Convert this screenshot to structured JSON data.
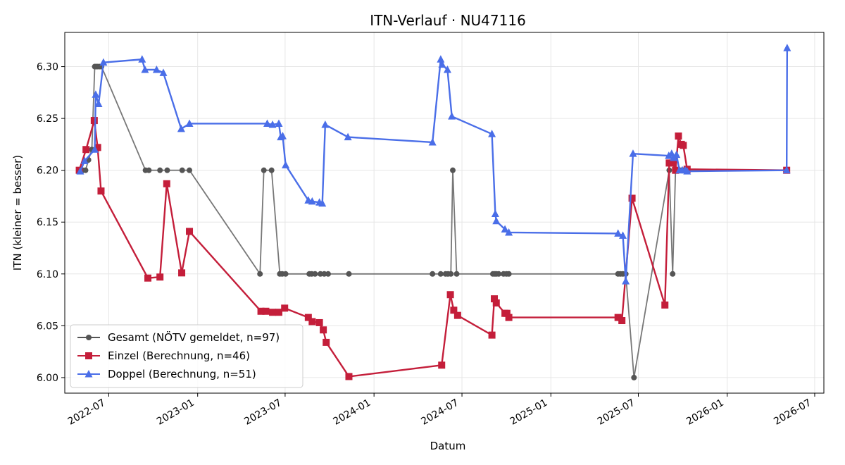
{
  "chart_data": {
    "type": "line",
    "title": "ITN-Verlauf · NU47116",
    "xlabel": "Datum",
    "ylabel": "ITN  (kleiner = besser)",
    "xlim": [
      "2022-04-01",
      "2026-07-20"
    ],
    "ylim": [
      5.985,
      6.333
    ],
    "x_ticks": [
      "2022-07",
      "2023-01",
      "2023-07",
      "2024-01",
      "2024-07",
      "2025-01",
      "2025-07",
      "2026-01",
      "2026-07"
    ],
    "y_ticks": [
      "6.00",
      "6.05",
      "6.10",
      "6.15",
      "6.20",
      "6.25",
      "6.30"
    ],
    "grid": true,
    "legend_position": "lower-left",
    "series": [
      {
        "name": "Gesamt (NÖTV gemeldet, n=97)",
        "color": "#555555",
        "marker": "circle",
        "points": [
          [
            "2022-05-02",
            6.2
          ],
          [
            "2022-05-08",
            6.2
          ],
          [
            "2022-05-14",
            6.2
          ],
          [
            "2022-05-20",
            6.21
          ],
          [
            "2022-05-27",
            6.22
          ],
          [
            "2022-06-02",
            6.3
          ],
          [
            "2022-06-05",
            6.3
          ],
          [
            "2022-06-08",
            6.3
          ],
          [
            "2022-06-12",
            6.3
          ],
          [
            "2022-06-16",
            6.3
          ],
          [
            "2022-09-15",
            6.2
          ],
          [
            "2022-09-22",
            6.2
          ],
          [
            "2022-10-15",
            6.2
          ],
          [
            "2022-10-30",
            6.2
          ],
          [
            "2022-11-30",
            6.2
          ],
          [
            "2022-12-15",
            6.2
          ],
          [
            "2023-05-10",
            6.1
          ],
          [
            "2023-05-18",
            6.2
          ],
          [
            "2023-06-03",
            6.2
          ],
          [
            "2023-06-20",
            6.1
          ],
          [
            "2023-06-25",
            6.1
          ],
          [
            "2023-07-02",
            6.1
          ],
          [
            "2023-08-20",
            6.1
          ],
          [
            "2023-08-25",
            6.1
          ],
          [
            "2023-09-01",
            6.1
          ],
          [
            "2023-09-12",
            6.1
          ],
          [
            "2023-09-20",
            6.1
          ],
          [
            "2023-09-28",
            6.1
          ],
          [
            "2023-11-10",
            6.1
          ],
          [
            "2024-05-01",
            6.1
          ],
          [
            "2024-05-18",
            6.1
          ],
          [
            "2024-05-28",
            6.1
          ],
          [
            "2024-06-02",
            6.1
          ],
          [
            "2024-06-08",
            6.1
          ],
          [
            "2024-06-12",
            6.2
          ],
          [
            "2024-06-20",
            6.1
          ],
          [
            "2024-09-03",
            6.1
          ],
          [
            "2024-09-07",
            6.1
          ],
          [
            "2024-09-10",
            6.1
          ],
          [
            "2024-09-15",
            6.1
          ],
          [
            "2024-09-25",
            6.1
          ],
          [
            "2024-10-01",
            6.1
          ],
          [
            "2024-10-06",
            6.1
          ],
          [
            "2025-05-20",
            6.1
          ],
          [
            "2025-05-25",
            6.1
          ],
          [
            "2025-05-30",
            6.1
          ],
          [
            "2025-06-05",
            6.1
          ],
          [
            "2025-06-22",
            6.0
          ],
          [
            "2025-09-03",
            6.2
          ],
          [
            "2025-09-10",
            6.1
          ],
          [
            "2025-09-16",
            6.2
          ],
          [
            "2025-09-22",
            6.2
          ],
          [
            "2025-09-28",
            6.2
          ],
          [
            "2025-10-02",
            6.2
          ],
          [
            "2025-10-06",
            6.2
          ],
          [
            "2025-10-10",
            6.2
          ],
          [
            "2026-05-04",
            6.2
          ]
        ]
      },
      {
        "name": "Einzel (Berechnung, n=46)",
        "color": "#c41e3a",
        "marker": "square",
        "points": [
          [
            "2022-05-01",
            6.2
          ],
          [
            "2022-05-15",
            6.22
          ],
          [
            "2022-06-01",
            6.248
          ],
          [
            "2022-06-08",
            6.222
          ],
          [
            "2022-06-15",
            6.18
          ],
          [
            "2022-09-20",
            6.096
          ],
          [
            "2022-10-15",
            6.097
          ],
          [
            "2022-10-29",
            6.187
          ],
          [
            "2022-11-29",
            6.101
          ],
          [
            "2022-12-15",
            6.141
          ],
          [
            "2023-05-12",
            6.064
          ],
          [
            "2023-05-22",
            6.064
          ],
          [
            "2023-06-05",
            6.063
          ],
          [
            "2023-06-18",
            6.063
          ],
          [
            "2023-06-30",
            6.067
          ],
          [
            "2023-08-18",
            6.058
          ],
          [
            "2023-08-26",
            6.054
          ],
          [
            "2023-09-10",
            6.053
          ],
          [
            "2023-09-18",
            6.046
          ],
          [
            "2023-09-24",
            6.034
          ],
          [
            "2023-11-10",
            6.001
          ],
          [
            "2024-05-20",
            6.012
          ],
          [
            "2024-06-07",
            6.08
          ],
          [
            "2024-06-14",
            6.065
          ],
          [
            "2024-06-22",
            6.06
          ],
          [
            "2024-09-01",
            6.041
          ],
          [
            "2024-09-06",
            6.076
          ],
          [
            "2024-09-10",
            6.072
          ],
          [
            "2024-09-28",
            6.062
          ],
          [
            "2024-10-02",
            6.062
          ],
          [
            "2024-10-06",
            6.058
          ],
          [
            "2025-05-20",
            6.058
          ],
          [
            "2025-05-28",
            6.055
          ],
          [
            "2025-06-18",
            6.173
          ],
          [
            "2025-08-25",
            6.07
          ],
          [
            "2025-09-03",
            6.207
          ],
          [
            "2025-09-10",
            6.207
          ],
          [
            "2025-09-16",
            6.2
          ],
          [
            "2025-09-22",
            6.233
          ],
          [
            "2025-09-28",
            6.225
          ],
          [
            "2025-10-02",
            6.224
          ],
          [
            "2025-10-10",
            6.201
          ],
          [
            "2026-05-04",
            6.2
          ]
        ]
      },
      {
        "name": "Doppel (Berechnung, n=51)",
        "color": "#4a6ee8",
        "marker": "triangle",
        "points": [
          [
            "2022-05-03",
            6.199
          ],
          [
            "2022-05-12",
            6.209
          ],
          [
            "2022-06-02",
            6.22
          ],
          [
            "2022-06-04",
            6.273
          ],
          [
            "2022-06-10",
            6.264
          ],
          [
            "2022-06-20",
            6.304
          ],
          [
            "2022-09-08",
            6.307
          ],
          [
            "2022-09-14",
            6.297
          ],
          [
            "2022-10-08",
            6.297
          ],
          [
            "2022-10-22",
            6.294
          ],
          [
            "2022-11-28",
            6.24
          ],
          [
            "2022-12-15",
            6.245
          ],
          [
            "2023-05-25",
            6.245
          ],
          [
            "2023-06-05",
            6.244
          ],
          [
            "2023-06-18",
            6.245
          ],
          [
            "2023-06-22",
            6.232
          ],
          [
            "2023-06-26",
            6.233
          ],
          [
            "2023-07-02",
            6.205
          ],
          [
            "2023-08-18",
            6.171
          ],
          [
            "2023-08-26",
            6.17
          ],
          [
            "2023-09-10",
            6.169
          ],
          [
            "2023-09-16",
            6.168
          ],
          [
            "2023-09-22",
            6.244
          ],
          [
            "2023-11-08",
            6.232
          ],
          [
            "2024-05-01",
            6.227
          ],
          [
            "2024-05-18",
            6.307
          ],
          [
            "2024-05-21",
            6.302
          ],
          [
            "2024-06-01",
            6.297
          ],
          [
            "2024-06-10",
            6.252
          ],
          [
            "2024-09-01",
            6.235
          ],
          [
            "2024-09-08",
            6.158
          ],
          [
            "2024-09-10",
            6.151
          ],
          [
            "2024-09-28",
            6.143
          ],
          [
            "2024-10-06",
            6.14
          ],
          [
            "2025-05-20",
            6.139
          ],
          [
            "2025-05-30",
            6.137
          ],
          [
            "2025-06-05",
            6.093
          ],
          [
            "2025-06-20",
            6.216
          ],
          [
            "2025-09-02",
            6.214
          ],
          [
            "2025-09-08",
            6.216
          ],
          [
            "2025-09-12",
            6.212
          ],
          [
            "2025-09-18",
            6.215
          ],
          [
            "2025-09-24",
            6.2
          ],
          [
            "2025-09-30",
            6.2
          ],
          [
            "2025-10-06",
            6.2
          ],
          [
            "2025-10-10",
            6.199
          ],
          [
            "2026-05-04",
            6.2
          ],
          [
            "2026-05-05",
            6.318
          ]
        ]
      }
    ]
  }
}
